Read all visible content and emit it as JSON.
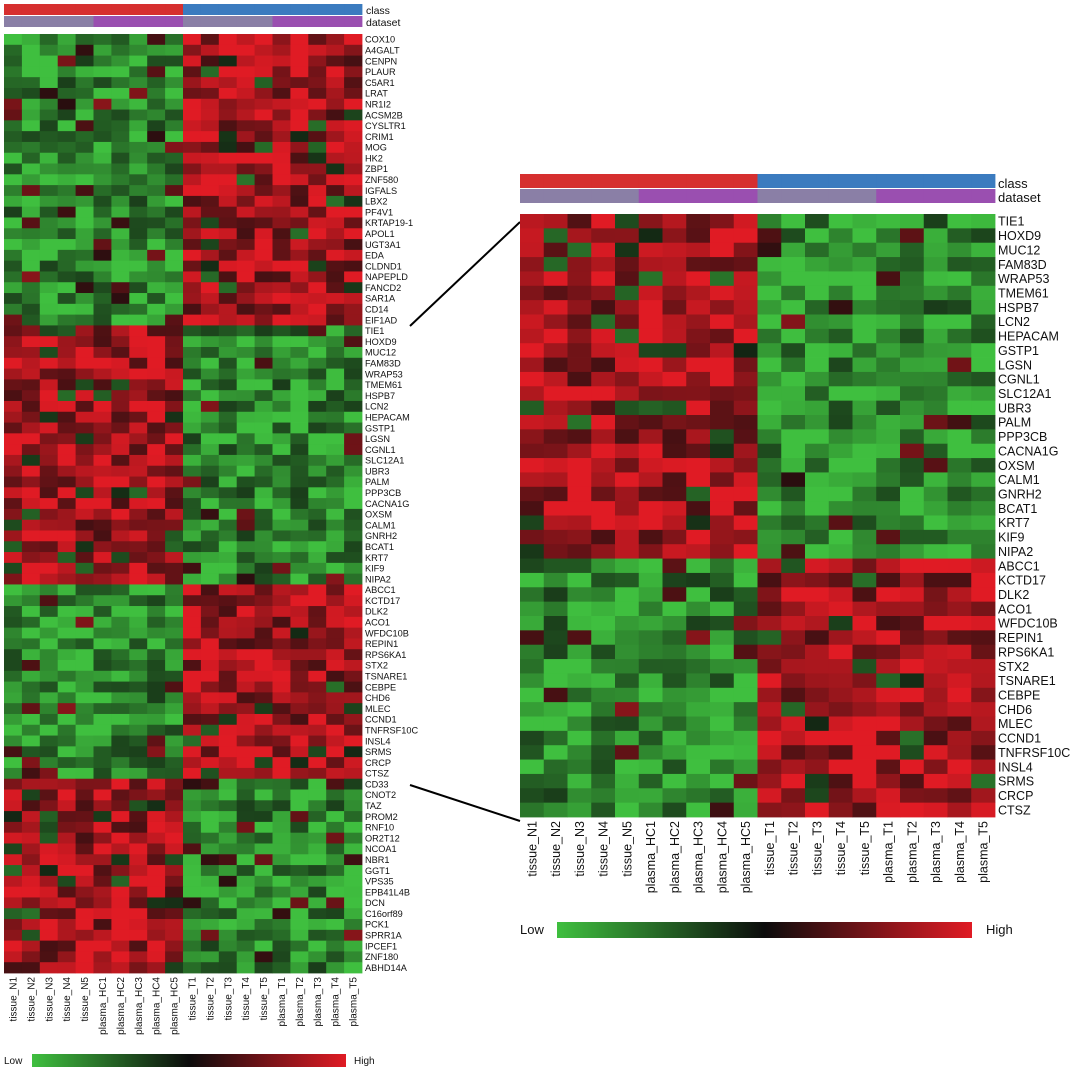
{
  "annotation_labels": {
    "class": "class",
    "dataset": "dataset"
  },
  "legend": {
    "low": "Low",
    "high": "High"
  },
  "colors": {
    "class_normal": "#d62f2f",
    "class_tumor": "#3b7bbf",
    "dataset_tissue": "#8a7fa6",
    "dataset_plasma": "#9a4fb0",
    "scale_low": "#3fbf3f",
    "scale_mid": "#0c0c0c",
    "scale_high": "#e01b24"
  },
  "chart_data": [
    {
      "type": "heatmap",
      "panel": "full",
      "columns": [
        "tissue_N1",
        "tissue_N2",
        "tissue_N3",
        "tissue_N4",
        "tissue_N5",
        "plasma_HC1",
        "plasma_HC2",
        "plasma_HC3",
        "plasma_HC4",
        "plasma_HC5",
        "tissue_T1",
        "tissue_T2",
        "tissue_T3",
        "tissue_T4",
        "tissue_T5",
        "plasma_T1",
        "plasma_T2",
        "plasma_T3",
        "plasma_T4",
        "plasma_T5"
      ],
      "class": [
        "N",
        "N",
        "N",
        "N",
        "N",
        "N",
        "N",
        "N",
        "N",
        "N",
        "T",
        "T",
        "T",
        "T",
        "T",
        "T",
        "T",
        "T",
        "T",
        "T"
      ],
      "dataset": [
        "tissue",
        "tissue",
        "tissue",
        "tissue",
        "tissue",
        "plasma",
        "plasma",
        "plasma",
        "plasma",
        "plasma",
        "tissue",
        "tissue",
        "tissue",
        "tissue",
        "tissue",
        "plasma",
        "plasma",
        "plasma",
        "plasma",
        "plasma"
      ],
      "rows": [
        "COX10",
        "A4GALT",
        "CENPN",
        "PLAUR",
        "C5AR1",
        "LRAT",
        "NR1I2",
        "ACSM2B",
        "CYSLTR1",
        "CRIM1",
        "MOG",
        "HK2",
        "ZBP1",
        "ZNF580",
        "IGFALS",
        "LBX2",
        "PF4V1",
        "KRTAP19-1",
        "APOL1",
        "UGT3A1",
        "EDA",
        "CLDND1",
        "NAPEPLD",
        "FANCD2",
        "SAR1A",
        "CD14",
        "EIF1AD",
        "TIE1",
        "HOXD9",
        "MUC12",
        "FAM83D",
        "WRAP53",
        "TMEM61",
        "HSPB7",
        "LCN2",
        "HEPACAM",
        "GSTP1",
        "LGSN",
        "CGNL1",
        "SLC12A1",
        "UBR3",
        "PALM",
        "PPP3CB",
        "CACNA1G",
        "OXSM",
        "CALM1",
        "GNRH2",
        "BCAT1",
        "KRT7",
        "KIF9",
        "NIPA2",
        "ABCC1",
        "KCTD17",
        "DLK2",
        "ACO1",
        "WFDC10B",
        "REPIN1",
        "RPS6KA1",
        "STX2",
        "TSNARE1",
        "CEBPE",
        "CHD6",
        "MLEC",
        "CCND1",
        "TNFRSF10C",
        "INSL4",
        "SRMS",
        "CRCP",
        "CTSZ",
        "CD33",
        "CNOT2",
        "TAZ",
        "PROM2",
        "RNF10",
        "OR2T12",
        "NCOA1",
        "NBR1",
        "GGT1",
        "VPS35",
        "EPB41L4B",
        "DCN",
        "C16orf89",
        "PCK1",
        "SPRR1A",
        "IPCEF1",
        "ZNF180",
        "ABHD14A"
      ],
      "row_block_pattern": [
        {
          "rows": "COX10-EIF1AD",
          "normal": "low",
          "tumor": "high"
        },
        {
          "rows": "TIE1-NIPA2",
          "normal": "high",
          "tumor": "low"
        },
        {
          "rows": "ABCC1-CTSZ",
          "normal": "low",
          "tumor": "high"
        },
        {
          "rows": "CD33-ABHD14A",
          "normal": "high",
          "tumor": "low"
        }
      ],
      "color_scale": [
        "Low",
        "High"
      ]
    },
    {
      "type": "heatmap",
      "panel": "zoom",
      "columns": [
        "tissue_N1",
        "tissue_N2",
        "tissue_N3",
        "tissue_N4",
        "tissue_N5",
        "plasma_HC1",
        "plasma_HC2",
        "plasma_HC3",
        "plasma_HC4",
        "plasma_HC5",
        "tissue_T1",
        "tissue_T2",
        "tissue_T3",
        "tissue_T4",
        "tissue_T5",
        "plasma_T1",
        "plasma_T2",
        "plasma_T3",
        "plasma_T4",
        "plasma_T5"
      ],
      "rows": [
        "TIE1",
        "HOXD9",
        "MUC12",
        "FAM83D",
        "WRAP53",
        "TMEM61",
        "HSPB7",
        "LCN2",
        "HEPACAM",
        "GSTP1",
        "LGSN",
        "CGNL1",
        "SLC12A1",
        "UBR3",
        "PALM",
        "PPP3CB",
        "CACNA1G",
        "OXSM",
        "CALM1",
        "GNRH2",
        "BCAT1",
        "KRT7",
        "KIF9",
        "NIPA2",
        "ABCC1",
        "KCTD17",
        "DLK2",
        "ACO1",
        "WFDC10B",
        "REPIN1",
        "RPS6KA1",
        "STX2",
        "TSNARE1",
        "CEBPE",
        "CHD6",
        "MLEC",
        "CCND1",
        "TNFRSF10C",
        "INSL4",
        "SRMS",
        "CRCP",
        "CTSZ"
      ],
      "row_block_pattern": [
        {
          "rows": "TIE1-NIPA2",
          "normal": "high",
          "tumor": "low"
        },
        {
          "rows": "ABCC1-CTSZ",
          "normal": "low",
          "tumor": "high"
        }
      ],
      "color_scale": [
        "Low",
        "High"
      ]
    }
  ]
}
